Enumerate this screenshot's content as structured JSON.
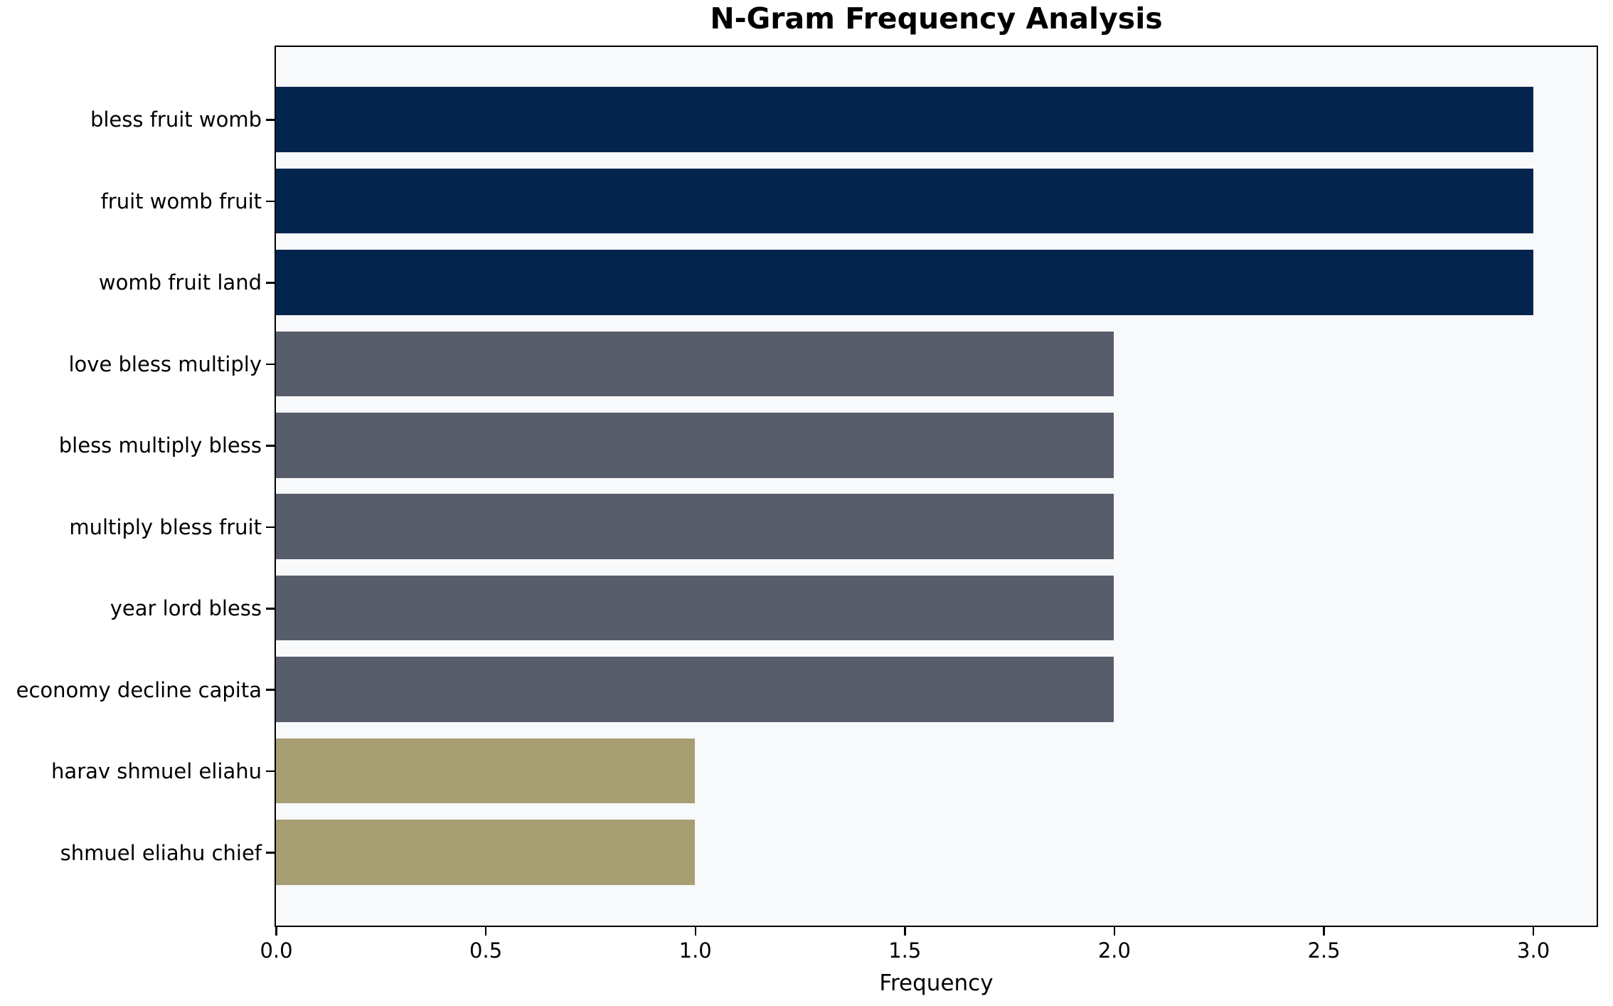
{
  "chart_data": {
    "type": "bar",
    "orientation": "horizontal",
    "title": "N-Gram Frequency Analysis",
    "xlabel": "Frequency",
    "ylabel": "",
    "categories": [
      "bless fruit womb",
      "fruit womb fruit",
      "womb fruit land",
      "love bless multiply",
      "bless multiply bless",
      "multiply bless fruit",
      "year lord bless",
      "economy decline capita",
      "harav shmuel eliahu",
      "shmuel eliahu chief"
    ],
    "values": [
      3,
      3,
      3,
      2,
      2,
      2,
      2,
      2,
      1,
      1
    ],
    "bar_colors": [
      "#03254D",
      "#03254D",
      "#03254D",
      "#575D6B",
      "#575D6B",
      "#575D6B",
      "#575D6B",
      "#575D6B",
      "#A89E73",
      "#A89E73"
    ],
    "x_ticks": [
      "0.0",
      "0.5",
      "1.0",
      "1.5",
      "2.0",
      "2.5",
      "3.0"
    ],
    "x_tick_values": [
      0,
      0.5,
      1,
      1.5,
      2,
      2.5,
      3
    ],
    "xlim": [
      0,
      3.15
    ],
    "grid": false,
    "legend": null,
    "plot_bg": "#F8F9FA",
    "figure_bg": "#FFFFFF",
    "axis_color": "#000000"
  }
}
